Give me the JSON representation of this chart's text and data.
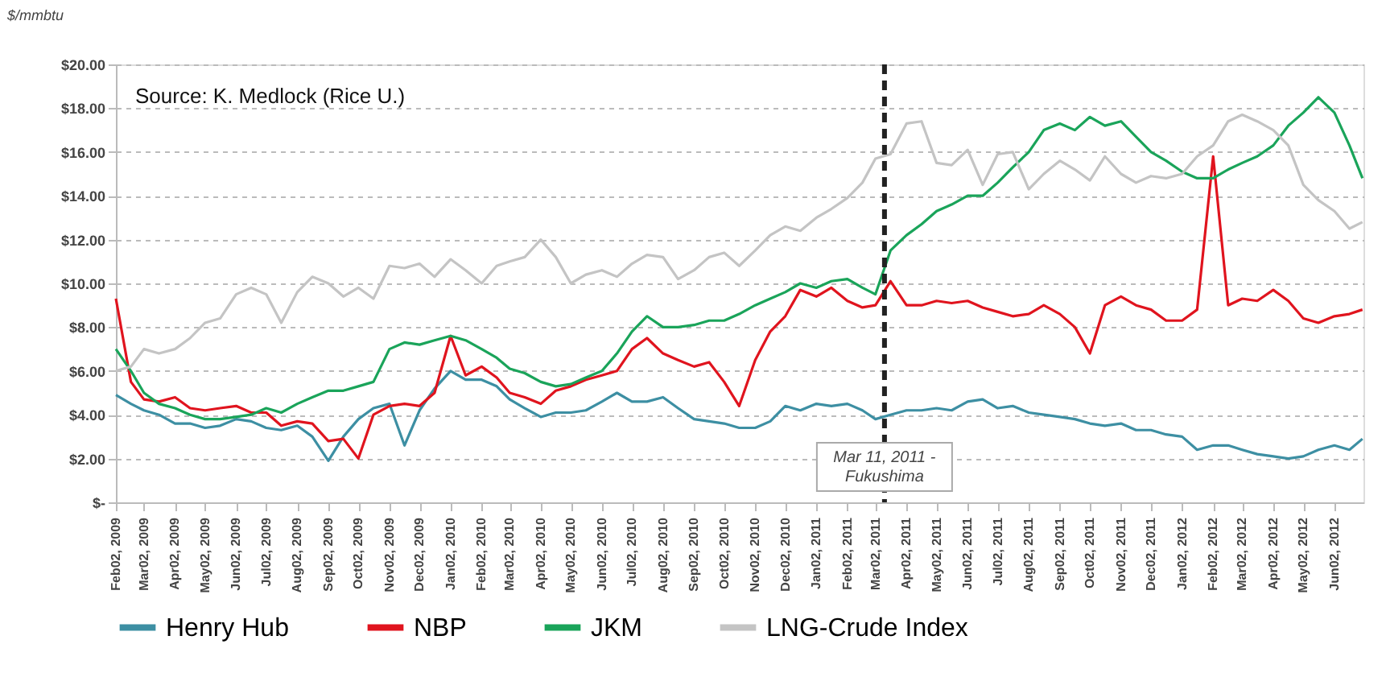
{
  "chart_data": {
    "type": "line",
    "ylabel": "$/mmbtu",
    "annotations": [
      "Source: K. Medlock (Rice U.)"
    ],
    "x": [
      "2009-02-02",
      "2009-02-17",
      "2009-03-02",
      "2009-03-17",
      "2009-04-02",
      "2009-04-17",
      "2009-05-02",
      "2009-05-17",
      "2009-06-02",
      "2009-06-17",
      "2009-07-02",
      "2009-07-17",
      "2009-08-02",
      "2009-08-17",
      "2009-09-02",
      "2009-09-17",
      "2009-10-02",
      "2009-10-17",
      "2009-11-02",
      "2009-11-17",
      "2009-12-02",
      "2009-12-17",
      "2010-01-02",
      "2010-01-17",
      "2010-02-02",
      "2010-02-17",
      "2010-03-02",
      "2010-03-17",
      "2010-04-02",
      "2010-04-17",
      "2010-05-02",
      "2010-05-17",
      "2010-06-02",
      "2010-06-17",
      "2010-07-02",
      "2010-07-17",
      "2010-08-02",
      "2010-08-17",
      "2010-09-02",
      "2010-09-17",
      "2010-10-02",
      "2010-10-17",
      "2010-11-02",
      "2010-11-17",
      "2010-12-02",
      "2010-12-17",
      "2011-01-02",
      "2011-01-17",
      "2011-02-02",
      "2011-02-17",
      "2011-03-02",
      "2011-03-17",
      "2011-04-02",
      "2011-04-17",
      "2011-05-02",
      "2011-05-17",
      "2011-06-02",
      "2011-06-17",
      "2011-07-02",
      "2011-07-17",
      "2011-08-02",
      "2011-08-17",
      "2011-09-02",
      "2011-09-17",
      "2011-10-02",
      "2011-10-17",
      "2011-11-02",
      "2011-11-17",
      "2011-12-02",
      "2011-12-17",
      "2012-01-02",
      "2012-01-17",
      "2012-02-02",
      "2012-02-17",
      "2012-03-02",
      "2012-03-17",
      "2012-04-02",
      "2012-04-17",
      "2012-05-02",
      "2012-05-17",
      "2012-06-02",
      "2012-06-17",
      "2012-06-30"
    ],
    "series": [
      {
        "name": "Henry Hub",
        "color": "#3d8fa3",
        "values": [
          4.9,
          4.5,
          4.2,
          4.0,
          3.6,
          3.6,
          3.4,
          3.5,
          3.8,
          3.7,
          3.4,
          3.3,
          3.5,
          3.0,
          1.9,
          3.0,
          3.8,
          4.3,
          4.5,
          2.6,
          4.2,
          5.2,
          6.0,
          5.6,
          5.6,
          5.3,
          4.7,
          4.3,
          3.9,
          4.1,
          4.1,
          4.2,
          4.6,
          5.0,
          4.6,
          4.6,
          4.8,
          4.3,
          3.8,
          3.7,
          3.6,
          3.4,
          3.4,
          3.7,
          4.4,
          4.2,
          4.5,
          4.4,
          4.5,
          4.2,
          3.8,
          4.0,
          4.2,
          4.2,
          4.3,
          4.2,
          4.6,
          4.7,
          4.3,
          4.4,
          4.1,
          4.0,
          3.9,
          3.8,
          3.6,
          3.5,
          3.6,
          3.3,
          3.3,
          3.1,
          3.0,
          2.4,
          2.6,
          2.6,
          2.4,
          2.2,
          2.1,
          2.0,
          2.1,
          2.4,
          2.6,
          2.4,
          2.9
        ]
      },
      {
        "name": "NBP",
        "color": "#e0141e",
        "values": [
          9.3,
          5.5,
          4.7,
          4.6,
          4.8,
          4.3,
          4.2,
          4.3,
          4.4,
          4.1,
          4.1,
          3.5,
          3.7,
          3.6,
          2.8,
          2.9,
          2.0,
          4.0,
          4.4,
          4.5,
          4.4,
          5.0,
          7.6,
          5.8,
          6.2,
          5.7,
          5.0,
          4.8,
          4.5,
          5.1,
          5.3,
          5.6,
          5.8,
          6.0,
          7.0,
          7.5,
          6.8,
          6.5,
          6.2,
          6.4,
          5.5,
          4.4,
          6.5,
          7.8,
          8.5,
          9.7,
          9.4,
          9.8,
          9.2,
          8.9,
          9.0,
          10.1,
          9.0,
          9.0,
          9.2,
          9.1,
          9.2,
          8.9,
          8.7,
          8.5,
          8.6,
          9.0,
          8.6,
          8.0,
          6.8,
          9.0,
          9.4,
          9.0,
          8.8,
          8.3,
          8.3,
          8.8,
          15.8,
          9.0,
          9.3,
          9.2,
          9.7,
          9.2,
          8.4,
          8.2,
          8.5,
          8.6,
          8.8
        ]
      },
      {
        "name": "JKM",
        "color": "#1aa45a",
        "values": [
          7.0,
          6.0,
          5.0,
          4.5,
          4.3,
          4.0,
          3.8,
          3.8,
          3.9,
          4.0,
          4.3,
          4.1,
          4.5,
          4.8,
          5.1,
          5.1,
          5.3,
          5.5,
          7.0,
          7.3,
          7.2,
          7.4,
          7.6,
          7.4,
          7.0,
          6.6,
          6.1,
          5.9,
          5.5,
          5.3,
          5.4,
          5.7,
          6.0,
          6.8,
          7.8,
          8.5,
          8.0,
          8.0,
          8.1,
          8.3,
          8.3,
          8.6,
          9.0,
          9.3,
          9.6,
          10.0,
          9.8,
          10.1,
          10.2,
          9.8,
          9.5,
          11.5,
          12.2,
          12.7,
          13.3,
          13.6,
          14.0,
          14.0,
          14.6,
          15.3,
          16.0,
          17.0,
          17.3,
          17.0,
          17.6,
          17.2,
          17.4,
          16.7,
          16.0,
          15.6,
          15.1,
          14.8,
          14.8,
          15.2,
          15.5,
          15.8,
          16.3,
          17.2,
          17.8,
          18.5,
          17.8,
          16.3,
          14.8
        ]
      },
      {
        "name": "LNG-Crude Index",
        "color": "#c4c4c4",
        "values": [
          6.0,
          6.2,
          7.0,
          6.8,
          7.0,
          7.5,
          8.2,
          8.4,
          9.5,
          9.8,
          9.5,
          8.2,
          9.6,
          10.3,
          10.0,
          9.4,
          9.8,
          9.3,
          10.8,
          10.7,
          10.9,
          10.3,
          11.1,
          10.6,
          10.0,
          10.8,
          11.0,
          11.2,
          12.0,
          11.2,
          10.0,
          10.4,
          10.6,
          10.3,
          10.9,
          11.3,
          11.2,
          10.2,
          10.6,
          11.2,
          11.4,
          10.8,
          11.5,
          12.2,
          12.6,
          12.4,
          13.0,
          13.4,
          13.9,
          14.6,
          15.7,
          15.9,
          17.3,
          17.4,
          15.5,
          15.4,
          16.1,
          14.5,
          15.9,
          16.0,
          14.3,
          15.0,
          15.6,
          15.2,
          14.7,
          15.8,
          15.0,
          14.6,
          14.9,
          14.8,
          15.0,
          15.8,
          16.3,
          17.4,
          17.7,
          17.4,
          17.0,
          16.3,
          14.5,
          13.8,
          13.3,
          12.5,
          12.8
        ]
      }
    ],
    "xlim": [
      "2009-02-02",
      "2012-07-01"
    ],
    "xticks": [
      {
        "value": "2009-02-02",
        "label": "Feb02, 2009"
      },
      {
        "value": "2009-03-02",
        "label": "Mar02, 2009"
      },
      {
        "value": "2009-04-02",
        "label": "Apr02, 2009"
      },
      {
        "value": "2009-05-02",
        "label": "May02, 2009"
      },
      {
        "value": "2009-06-02",
        "label": "Jun02, 2009"
      },
      {
        "value": "2009-07-02",
        "label": "Jul02, 2009"
      },
      {
        "value": "2009-08-02",
        "label": "Aug02, 2009"
      },
      {
        "value": "2009-09-02",
        "label": "Sep02, 2009"
      },
      {
        "value": "2009-10-02",
        "label": "Oct02, 2009"
      },
      {
        "value": "2009-11-02",
        "label": "Nov02, 2009"
      },
      {
        "value": "2009-12-02",
        "label": "Dec02, 2009"
      },
      {
        "value": "2010-01-02",
        "label": "Jan02, 2010"
      },
      {
        "value": "2010-02-02",
        "label": "Feb02, 2010"
      },
      {
        "value": "2010-03-02",
        "label": "Mar02, 2010"
      },
      {
        "value": "2010-04-02",
        "label": "Apr02, 2010"
      },
      {
        "value": "2010-05-02",
        "label": "May02, 2010"
      },
      {
        "value": "2010-06-02",
        "label": "Jun02, 2010"
      },
      {
        "value": "2010-07-02",
        "label": "Jul02, 2010"
      },
      {
        "value": "2010-08-02",
        "label": "Aug02, 2010"
      },
      {
        "value": "2010-09-02",
        "label": "Sep02, 2010"
      },
      {
        "value": "2010-10-02",
        "label": "Oct02, 2010"
      },
      {
        "value": "2010-11-02",
        "label": "Nov02, 2010"
      },
      {
        "value": "2010-12-02",
        "label": "Dec02, 2010"
      },
      {
        "value": "2011-01-02",
        "label": "Jan02, 2011"
      },
      {
        "value": "2011-02-02",
        "label": "Feb02, 2011"
      },
      {
        "value": "2011-03-02",
        "label": "Mar02, 2011"
      },
      {
        "value": "2011-04-02",
        "label": "Apr02, 2011"
      },
      {
        "value": "2011-05-02",
        "label": "May02, 2011"
      },
      {
        "value": "2011-06-02",
        "label": "Jun02, 2011"
      },
      {
        "value": "2011-07-02",
        "label": "Jul02, 2011"
      },
      {
        "value": "2011-08-02",
        "label": "Aug02, 2011"
      },
      {
        "value": "2011-09-02",
        "label": "Sep02, 2011"
      },
      {
        "value": "2011-10-02",
        "label": "Oct02, 2011"
      },
      {
        "value": "2011-11-02",
        "label": "Nov02, 2011"
      },
      {
        "value": "2011-12-02",
        "label": "Dec02, 2011"
      },
      {
        "value": "2012-01-02",
        "label": "Jan02, 2012"
      },
      {
        "value": "2012-02-02",
        "label": "Feb02, 2012"
      },
      {
        "value": "2012-03-02",
        "label": "Mar02, 2012"
      },
      {
        "value": "2012-04-02",
        "label": "Apr02, 2012"
      },
      {
        "value": "2012-05-02",
        "label": "May02, 2012"
      },
      {
        "value": "2012-06-02",
        "label": "Jun02, 2012"
      }
    ],
    "ylim": [
      0,
      20
    ],
    "yticks": [
      {
        "value": 0,
        "label": "$-"
      },
      {
        "value": 2,
        "label": "$2.00"
      },
      {
        "value": 4,
        "label": "$4.00"
      },
      {
        "value": 6,
        "label": "$6.00"
      },
      {
        "value": 8,
        "label": "$8.00"
      },
      {
        "value": 10,
        "label": "$10.00"
      },
      {
        "value": 12,
        "label": "$12.00"
      },
      {
        "value": 14,
        "label": "$14.00"
      },
      {
        "value": 16,
        "label": "$16.00"
      },
      {
        "value": 18,
        "label": "$18.00"
      },
      {
        "value": 20,
        "label": "$20.00"
      }
    ],
    "ref_lines": [
      {
        "axis": "x",
        "value": "2011-03-11",
        "label": "Mar 11, 2011 -\nFukushima",
        "color": "#222222",
        "line_style": "dashed"
      }
    ],
    "grid": "y",
    "legend": "bottom",
    "marker": "none",
    "line_style": "solid"
  }
}
